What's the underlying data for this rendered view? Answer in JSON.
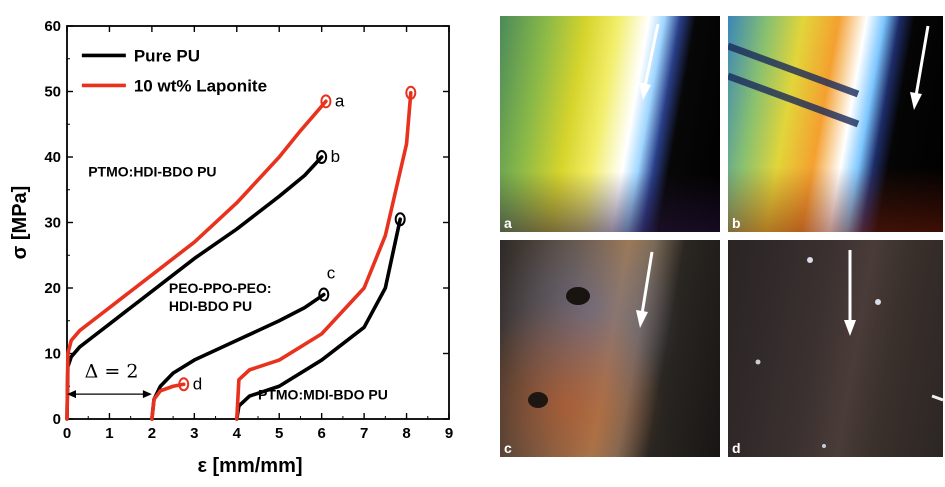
{
  "chart_data": {
    "type": "line",
    "xlabel": "ε [mm/mm]",
    "ylabel": "σ [MPa]",
    "xlim": [
      0,
      9
    ],
    "ylim": [
      0,
      60
    ],
    "xticks": [
      "0",
      "1",
      "2",
      "3",
      "4",
      "5",
      "6",
      "7",
      "8",
      "9"
    ],
    "yticks": [
      "0",
      "10",
      "20",
      "30",
      "40",
      "50",
      "60"
    ],
    "grid": false,
    "legend_position": "top-left",
    "legend": [
      {
        "label": "Pure PU",
        "color": "#000000"
      },
      {
        "label": "10 wt% Laponite",
        "color": "#e8321e"
      }
    ],
    "series": [
      {
        "name": "Pure PU",
        "color": "#000000",
        "label": "b",
        "x": [
          0,
          0.02,
          0.1,
          0.3,
          0.6,
          1.0,
          2.0,
          3.0,
          4.0,
          5.0,
          5.6,
          6.0
        ],
        "y": [
          0,
          8,
          9.5,
          11,
          12.5,
          14.5,
          19.5,
          24.5,
          29,
          34,
          37.2,
          40
        ]
      },
      {
        "name": "10 wt% Laponite",
        "color": "#e8321e",
        "label": "a",
        "x": [
          0,
          0.02,
          0.1,
          0.3,
          0.6,
          1.0,
          2.0,
          3.0,
          4.0,
          5.0,
          5.5,
          6.1
        ],
        "y": [
          0,
          10,
          12,
          13.5,
          15,
          17,
          22,
          27,
          33,
          40,
          44,
          48.5
        ]
      },
      {
        "name": "Pure PU",
        "color": "#000000",
        "label": "c",
        "x": [
          2.0,
          2.05,
          2.2,
          2.5,
          3.0,
          4.0,
          5.0,
          5.6,
          6.05
        ],
        "y": [
          0,
          3,
          5,
          7,
          9,
          12,
          15,
          17,
          19
        ]
      },
      {
        "name": "10 wt% Laponite",
        "color": "#e8321e",
        "label": "d",
        "x": [
          2.0,
          2.05,
          2.2,
          2.5,
          2.75
        ],
        "y": [
          0,
          3,
          4.3,
          5,
          5.3
        ]
      },
      {
        "name": "Pure PU",
        "color": "#000000",
        "label": "",
        "x": [
          4.0,
          4.05,
          4.3,
          5.0,
          6.0,
          7.0,
          7.5,
          7.85
        ],
        "y": [
          0,
          2,
          3.5,
          5,
          9,
          14,
          20,
          30.5
        ]
      },
      {
        "name": "10 wt% Laponite",
        "color": "#e8321e",
        "label": "",
        "x": [
          4.0,
          4.05,
          4.3,
          5.0,
          6.0,
          7.0,
          7.5,
          8.0,
          8.1
        ],
        "y": [
          0,
          6,
          7.5,
          9,
          13,
          20,
          28,
          42,
          49.8
        ]
      }
    ],
    "annotations": [
      {
        "text": "PTMO:HDI-BDO PU",
        "x": 0.5,
        "y": 37
      },
      {
        "text": "PEO-PPO-PEO:",
        "x": 2.4,
        "y": 19.2
      },
      {
        "text": "HDI-BDO PU",
        "x": 2.4,
        "y": 16.5
      },
      {
        "text": "PTMO:MDI-BDO PU",
        "x": 4.5,
        "y": 3
      },
      {
        "text": "Δ = 2",
        "x": 1.05,
        "y": 6.3
      }
    ],
    "offset_arrow": {
      "from": 0,
      "to": 2,
      "y": 3.8
    }
  },
  "photos": [
    {
      "label": "a"
    },
    {
      "label": "b"
    },
    {
      "label": "c"
    },
    {
      "label": "d"
    }
  ]
}
